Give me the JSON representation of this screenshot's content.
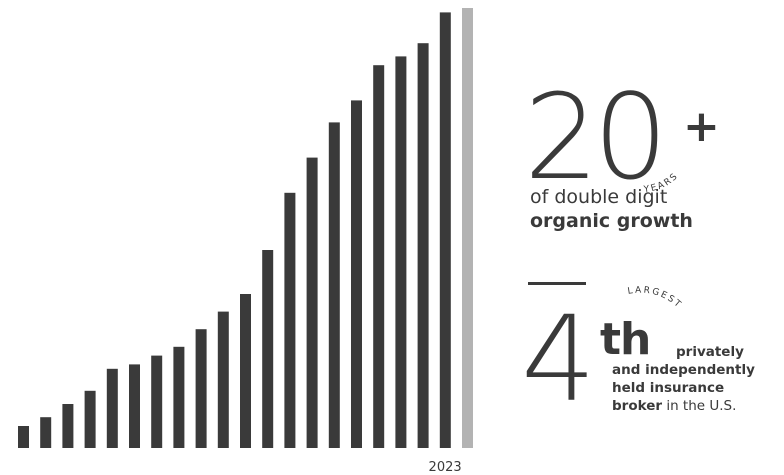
{
  "chart_data": {
    "type": "bar",
    "title": "",
    "xlabel": "",
    "ylabel": "",
    "categories": [
      "",
      "",
      "",
      "",
      "",
      "",
      "",
      "",
      "",
      "",
      "",
      "",
      "",
      "",
      "",
      "",
      "",
      "",
      "",
      "2023"
    ],
    "tick_labels": [
      "2023"
    ],
    "values": [
      5,
      7,
      10,
      13,
      18,
      19,
      21,
      23,
      27,
      31,
      35,
      45,
      58,
      66,
      74,
      79,
      87,
      89,
      92,
      99
    ],
    "highlight_value": 100,
    "ylim": [
      0,
      100
    ],
    "grid": false,
    "legend": "none",
    "colors": {
      "bar": "#3a3a3a",
      "highlight": "#b3b3b3"
    }
  },
  "stats": {
    "growth": {
      "number": "20",
      "plus": "+",
      "unit": "YEARS",
      "desc_pre": "of double digit ",
      "desc_bold": "organic growth"
    },
    "rank": {
      "number": "4",
      "suffix": "th",
      "unit": "LARGEST",
      "line1_bold": "privately",
      "line2_bold": "and independently",
      "line3_bold": "held insurance",
      "line4_bold": "broker",
      "line4_rest": " in the U.S."
    }
  }
}
